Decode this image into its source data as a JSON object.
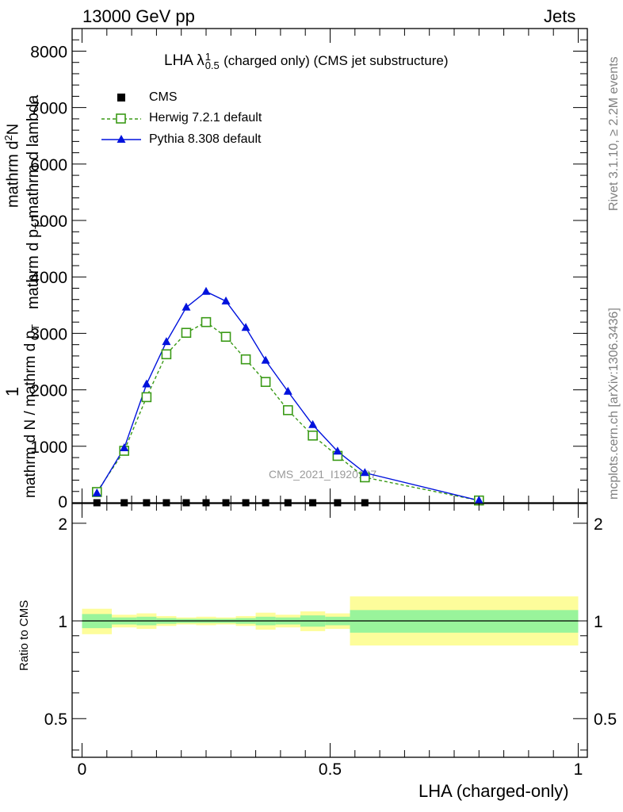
{
  "header": {
    "left": "13000 GeV pp",
    "right": "Jets"
  },
  "side_labels": {
    "rivet": "Rivet 3.1.10, ≥ 2.2M events",
    "mcplots": "mcplots.cern.ch [arXiv:1306.3436]"
  },
  "watermark": "CMS_2021_I1920187",
  "colors": {
    "cms": "#000000",
    "herwig": "#3a9a16",
    "pythia": "#0012dd",
    "band_inner": "#99f49b",
    "band_outer": "#fdfd9b"
  },
  "chart_data": [
    {
      "type": "line",
      "title": "LHA λ",
      "title_sup": "1",
      "title_sub": "0.5",
      "title_rest": "(charged only) (CMS jet substructure)",
      "ylabel_numer": "mathrm d",
      "ylabel_numer_sup": "2",
      "ylabel_numer_tail": "N",
      "ylabel_denom": "mathrm d p",
      "ylabel_denom_sub": "T",
      "ylabel_denom_tail": "mathrm d lambda",
      "ylabel_pre_numer": "1",
      "ylabel_pre_denom": "mathrm d N / mathrm d p",
      "ylabel_pre_denom_sub": "T",
      "xlim": [
        0,
        1
      ],
      "ylim": [
        0,
        8400
      ],
      "yticks": [
        1000,
        2000,
        3000,
        4000,
        5000,
        6000,
        7000,
        8000
      ],
      "ytick_labels": [
        "1000",
        "2000",
        "3000",
        "4000",
        "5000",
        "6000",
        "7000",
        "8000"
      ],
      "ytick_bottom": "0",
      "legend_position": "top-left",
      "series": [
        {
          "name": "CMS",
          "marker": "square-filled",
          "x": [
            0.03,
            0.085,
            0.13,
            0.17,
            0.21,
            0.25,
            0.29,
            0.33,
            0.37,
            0.415,
            0.465,
            0.515,
            0.57
          ],
          "y": [
            0,
            0,
            0,
            0,
            0,
            0,
            0,
            0,
            0,
            0,
            0,
            0,
            0
          ]
        },
        {
          "name": "Herwig 7.2.1 default",
          "marker": "square-open",
          "dash": true,
          "x": [
            0.03,
            0.085,
            0.13,
            0.17,
            0.21,
            0.25,
            0.29,
            0.33,
            0.37,
            0.415,
            0.465,
            0.515,
            0.57,
            0.8
          ],
          "y": [
            190,
            920,
            1870,
            2630,
            3010,
            3200,
            2940,
            2540,
            2140,
            1640,
            1190,
            830,
            450,
            40
          ]
        },
        {
          "name": "Pythia 8.308 default",
          "marker": "triangle-filled",
          "x": [
            0.03,
            0.085,
            0.13,
            0.17,
            0.21,
            0.25,
            0.29,
            0.33,
            0.37,
            0.415,
            0.465,
            0.515,
            0.57,
            0.8
          ],
          "y": [
            170,
            970,
            2100,
            2850,
            3460,
            3740,
            3570,
            3100,
            2520,
            1970,
            1380,
            910,
            530,
            40
          ]
        }
      ]
    },
    {
      "type": "area",
      "ylabel": "Ratio to CMS",
      "xlabel": "LHA (charged-only)",
      "xlim": [
        0,
        1
      ],
      "xticks": [
        0,
        0.5,
        1
      ],
      "xtick_labels": [
        "0",
        "0.5",
        "1"
      ],
      "ylim": [
        0.38,
        2.3
      ],
      "log_y": true,
      "yticks": [
        0.5,
        1,
        2
      ],
      "ytick_labels": [
        "0.5",
        "1",
        "2"
      ],
      "reference_line": 1,
      "bins": [
        {
          "lo": 0.0,
          "hi": 0.06,
          "inner": [
            0.95,
            1.05
          ],
          "outer": [
            0.91,
            1.09
          ]
        },
        {
          "lo": 0.06,
          "hi": 0.11,
          "inner": [
            0.975,
            1.025
          ],
          "outer": [
            0.955,
            1.045
          ]
        },
        {
          "lo": 0.11,
          "hi": 0.15,
          "inner": [
            0.97,
            1.03
          ],
          "outer": [
            0.945,
            1.055
          ]
        },
        {
          "lo": 0.15,
          "hi": 0.19,
          "inner": [
            0.98,
            1.02
          ],
          "outer": [
            0.965,
            1.035
          ]
        },
        {
          "lo": 0.19,
          "hi": 0.23,
          "inner": [
            0.985,
            1.015
          ],
          "outer": [
            0.975,
            1.025
          ]
        },
        {
          "lo": 0.23,
          "hi": 0.27,
          "inner": [
            0.985,
            1.015
          ],
          "outer": [
            0.97,
            1.03
          ]
        },
        {
          "lo": 0.27,
          "hi": 0.31,
          "inner": [
            0.985,
            1.015
          ],
          "outer": [
            0.975,
            1.025
          ]
        },
        {
          "lo": 0.31,
          "hi": 0.35,
          "inner": [
            0.98,
            1.02
          ],
          "outer": [
            0.965,
            1.035
          ]
        },
        {
          "lo": 0.35,
          "hi": 0.39,
          "inner": [
            0.97,
            1.03
          ],
          "outer": [
            0.94,
            1.06
          ]
        },
        {
          "lo": 0.39,
          "hi": 0.44,
          "inner": [
            0.975,
            1.025
          ],
          "outer": [
            0.955,
            1.045
          ]
        },
        {
          "lo": 0.44,
          "hi": 0.49,
          "inner": [
            0.96,
            1.04
          ],
          "outer": [
            0.93,
            1.07
          ]
        },
        {
          "lo": 0.49,
          "hi": 0.54,
          "inner": [
            0.97,
            1.03
          ],
          "outer": [
            0.945,
            1.055
          ]
        },
        {
          "lo": 0.54,
          "hi": 1.0,
          "inner": [
            0.92,
            1.08
          ],
          "outer": [
            0.84,
            1.19
          ]
        }
      ],
      "series": [
        {
          "name": "",
          "x": [
            0.0,
            1.0
          ],
          "y": [
            1,
            1
          ]
        }
      ]
    }
  ]
}
